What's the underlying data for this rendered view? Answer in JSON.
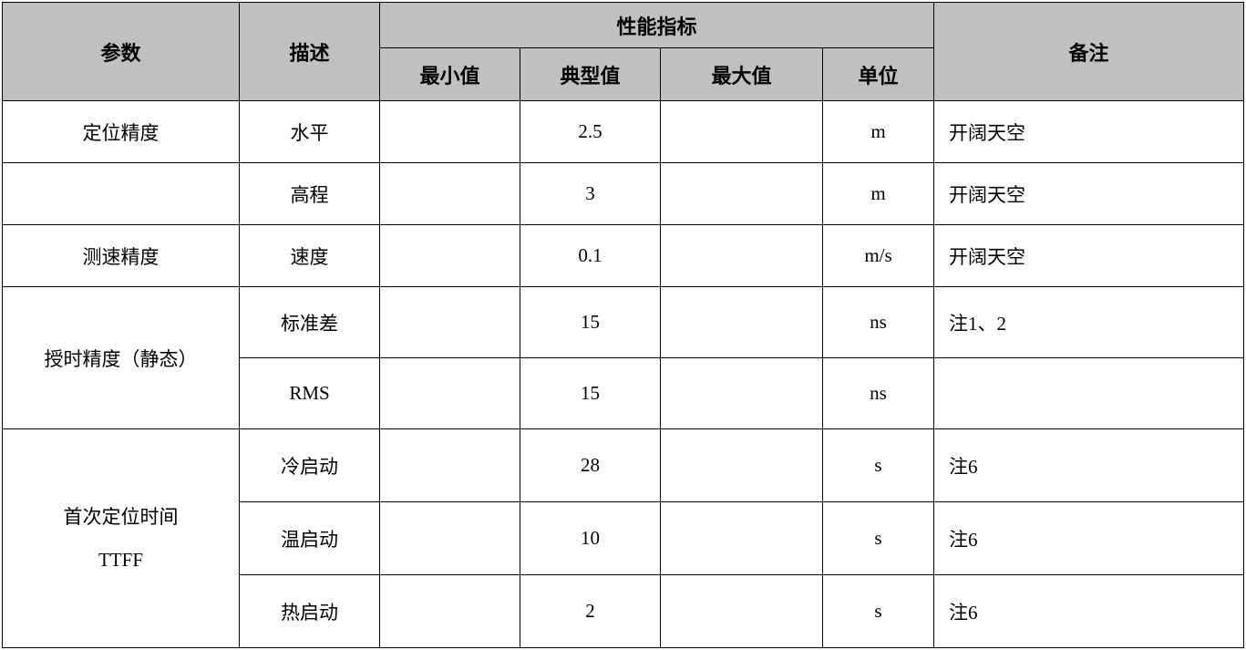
{
  "table": {
    "type": "table",
    "background_color": "#ffffff",
    "header_background": "#c0c0c0",
    "border_color": "#000000",
    "header_fontsize": 22,
    "body_fontsize": 21,
    "headers": {
      "param": "参数",
      "desc": "描述",
      "perf": "性能指标",
      "min": "最小值",
      "typ": "典型值",
      "max": "最大值",
      "unit": "单位",
      "remark": "备注"
    },
    "columns": {
      "param_width": 260,
      "desc_width": 154,
      "min_width": 154,
      "typ_width": 154,
      "max_width": 178,
      "unit_width": 122,
      "remark_width": 340
    },
    "rows": [
      {
        "param": "定位精度",
        "desc": "水平",
        "min": "",
        "typ": "2.5",
        "max": "",
        "unit": "m",
        "remark": "开阔天空"
      },
      {
        "param": "",
        "desc": "高程",
        "min": "",
        "typ": "3",
        "max": "",
        "unit": "m",
        "remark": "开阔天空"
      },
      {
        "param": "测速精度",
        "desc": "速度",
        "min": "",
        "typ": "0.1",
        "max": "",
        "unit": "m/s",
        "remark": "开阔天空"
      },
      {
        "param": "授时精度（静态）",
        "param_rowspan": 2,
        "desc": "标准差",
        "min": "",
        "typ": "15",
        "max": "",
        "unit": "ns",
        "remark": "注1、2"
      },
      {
        "desc": "RMS",
        "min": "",
        "typ": "15",
        "max": "",
        "unit": "ns",
        "remark": ""
      },
      {
        "param_line1": "首次定位时间",
        "param_line2": "TTFF",
        "param_rowspan": 3,
        "desc": "冷启动",
        "min": "",
        "typ": "28",
        "max": "",
        "unit": "s",
        "remark": "注6"
      },
      {
        "desc": "温启动",
        "min": "",
        "typ": "10",
        "max": "",
        "unit": "s",
        "remark": "注6"
      },
      {
        "desc": "热启动",
        "min": "",
        "typ": "2",
        "max": "",
        "unit": "s",
        "remark": "注6"
      }
    ]
  }
}
